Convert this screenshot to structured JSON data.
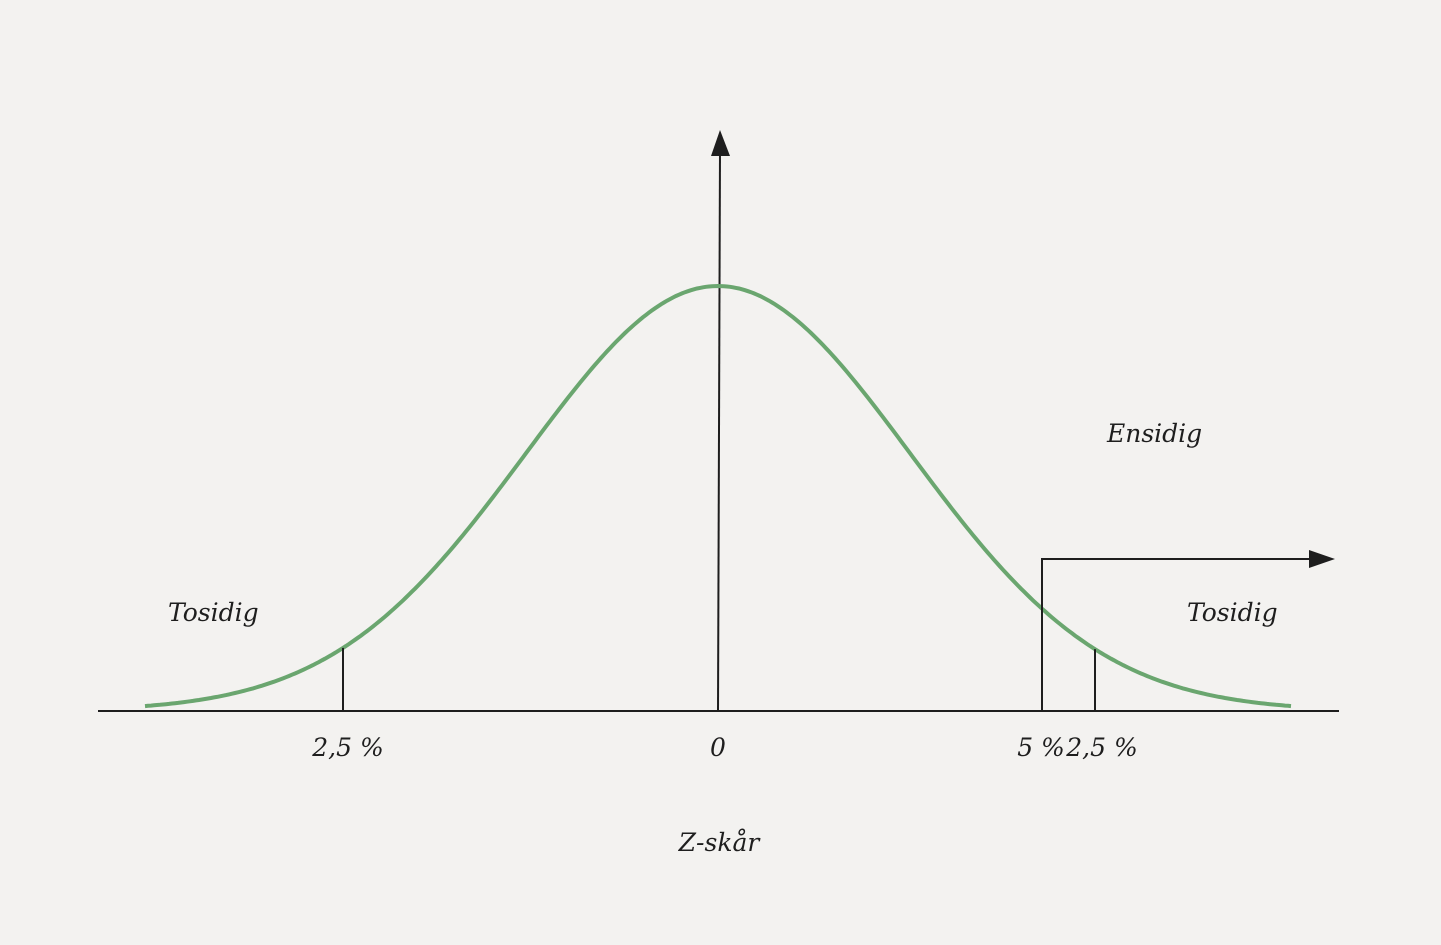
{
  "diagram": {
    "labels": {
      "one_sided": "Ensidig",
      "two_sided_left": "Tosidig",
      "two_sided_right": "Tosidig",
      "tick_left": "2,5 %",
      "tick_zero": "0",
      "tick_5": "5 %",
      "tick_right": "2,5 %",
      "xlabel": "Z-skår"
    },
    "curve_color": "#6aa66f",
    "axis_color": "#1e1e1e",
    "critical_z": {
      "two_sided": 1.96,
      "one_sided": 1.645
    }
  }
}
